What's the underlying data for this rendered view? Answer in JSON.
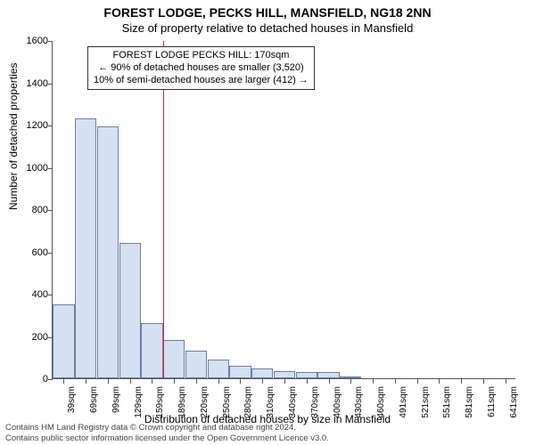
{
  "title_main": "FOREST LODGE, PECKS HILL, MANSFIELD, NG18 2NN",
  "title_sub": "Size of property relative to detached houses in Mansfield",
  "y_axis_label": "Number of detached properties",
  "x_axis_label": "Distribution of detached houses by size in Mansfield",
  "chart": {
    "type": "histogram",
    "bar_fill": "#d5e0f2",
    "bar_stroke": "#6b7fa6",
    "background": "#ffffff",
    "axis_color": "#555555",
    "ref_line_color": "#d62728",
    "ref_line_x_category_index": 5,
    "ylim": [
      0,
      1600
    ],
    "ytick_step": 200,
    "x_categories": [
      "39sqm",
      "69sqm",
      "99sqm",
      "129sqm",
      "159sqm",
      "189sqm",
      "220sqm",
      "250sqm",
      "280sqm",
      "310sqm",
      "340sqm",
      "370sqm",
      "400sqm",
      "430sqm",
      "460sqm",
      "491sqm",
      "521sqm",
      "551sqm",
      "581sqm",
      "611sqm",
      "641sqm"
    ],
    "bar_values": [
      350,
      1230,
      1190,
      640,
      260,
      180,
      130,
      90,
      60,
      45,
      35,
      30,
      30,
      10,
      0,
      0,
      0,
      0,
      0,
      0,
      0
    ],
    "bar_width_ratio": 0.98
  },
  "annotation": {
    "line1": "FOREST LODGE PECKS HILL: 170sqm",
    "line2": "← 90% of detached houses are smaller (3,520)",
    "line3": "10% of semi-detached houses are larger (412) →"
  },
  "footer_line1": "Contains HM Land Registry data © Crown copyright and database right 2024.",
  "footer_line2": "Contains public sector information licensed under the Open Government Licence v3.0."
}
